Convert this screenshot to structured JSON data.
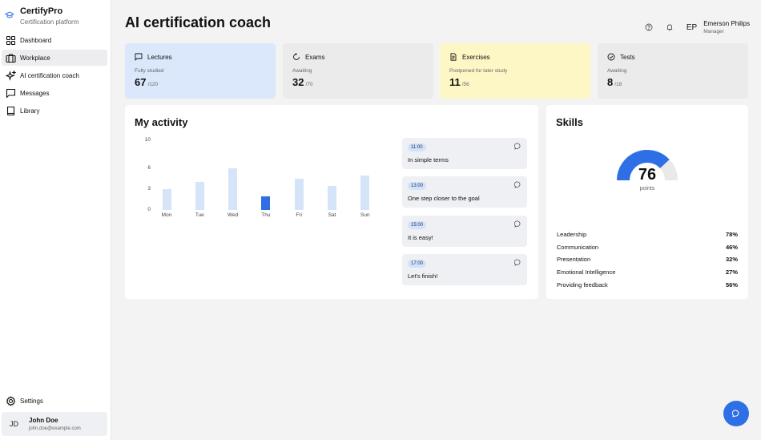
{
  "brand": {
    "name": "CertifyPro",
    "subtitle": "Certification platform"
  },
  "nav": [
    {
      "label": "Dashboard",
      "icon": "dashboard-icon",
      "active": false
    },
    {
      "label": "Workplace",
      "icon": "briefcase-icon",
      "active": true
    },
    {
      "label": "AI certification coach",
      "icon": "sparkle-icon",
      "active": false
    },
    {
      "label": "Messages",
      "icon": "message-icon",
      "active": false
    },
    {
      "label": "Library",
      "icon": "book-icon",
      "active": false
    }
  ],
  "settings_label": "Settings",
  "user": {
    "initials": "JD",
    "name": "John Doe",
    "email": "john.doe@example.com"
  },
  "header": {
    "title": "AI certification coach",
    "profile_initials": "EP",
    "profile_name": "Emerson Philips",
    "profile_role": "Manager"
  },
  "stats": [
    {
      "label": "Lectures",
      "sub": "Fully studied",
      "value": "67",
      "total": "/120",
      "color": "#dbe7fb",
      "icon": "chat-square-icon"
    },
    {
      "label": "Exams",
      "sub": "Awaiting",
      "value": "32",
      "total": "/70",
      "color": "#ebebec",
      "icon": "refresh-icon"
    },
    {
      "label": "Exercises",
      "sub": "Postponed for later study",
      "value": "11",
      "total": "/56",
      "color": "#fdf7c5",
      "icon": "document-icon"
    },
    {
      "label": "Tests",
      "sub": "Awaiting",
      "value": "8",
      "total": "/18",
      "color": "#ebebec",
      "icon": "check-circle-icon"
    }
  ],
  "activity": {
    "title": "My activity",
    "messages": [
      {
        "time": "11:00",
        "text": "In simple terms"
      },
      {
        "time": "13:00",
        "text": "One step closer to the goal"
      },
      {
        "time": "15:00",
        "text": "It is easy!"
      },
      {
        "time": "17:00",
        "text": "Let's finish!"
      }
    ]
  },
  "chart_data": {
    "type": "bar",
    "categories": [
      "Mon",
      "Tue",
      "Wed",
      "Thu",
      "Fri",
      "Sat",
      "Sun"
    ],
    "values": [
      3,
      4,
      6,
      2,
      4.5,
      3.5,
      5
    ],
    "highlight": "Thu",
    "yticks": [
      0,
      3,
      6,
      10
    ],
    "ylim": [
      0,
      10
    ],
    "bar_color": "#d6e4fa",
    "highlight_color": "#2f6fe6",
    "title": "",
    "xlabel": "",
    "ylabel": ""
  },
  "skills": {
    "title": "Skills",
    "points": "76",
    "points_label": "points",
    "gauge_fraction": 0.76,
    "gauge_color": "#2f6fe6",
    "items": [
      {
        "name": "Leadership",
        "pct": "78%"
      },
      {
        "name": "Communication",
        "pct": "46%"
      },
      {
        "name": "Presentation",
        "pct": "32%"
      },
      {
        "name": "Emotional Intelligence",
        "pct": "27%"
      },
      {
        "name": "Providing feedback",
        "pct": "56%"
      }
    ]
  },
  "fab_icon": "chat-bubble-icon"
}
